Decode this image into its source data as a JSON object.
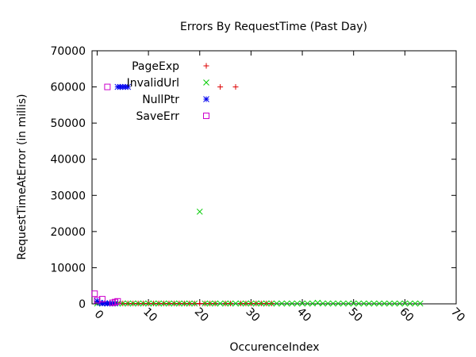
{
  "chart_data": {
    "type": "scatter",
    "title": "Errors By RequestTime (Past Day)",
    "xlabel": "OccurenceIndex",
    "ylabel": "RequestTimeAtError (in millis)",
    "xlim": [
      -1,
      70
    ],
    "ylim": [
      0,
      70000
    ],
    "x_ticks": [
      "0",
      "10",
      "20",
      "30",
      "40",
      "50",
      "60",
      "70"
    ],
    "y_ticks": [
      "0",
      "10000",
      "20000",
      "30000",
      "40000",
      "50000",
      "60000",
      "70000"
    ],
    "grid": false,
    "legend_position": "top-left",
    "series": [
      {
        "name": "PageExp",
        "marker": "plus",
        "color": "#dd0000",
        "points": [
          [
            0,
            500
          ],
          [
            1,
            200
          ],
          [
            2,
            150
          ],
          [
            3,
            100
          ],
          [
            4,
            300
          ],
          [
            5,
            100
          ],
          [
            6,
            100
          ],
          [
            7,
            100
          ],
          [
            8,
            100
          ],
          [
            9,
            100
          ],
          [
            10,
            100
          ],
          [
            11,
            100
          ],
          [
            12,
            100
          ],
          [
            13,
            100
          ],
          [
            14,
            100
          ],
          [
            15,
            100
          ],
          [
            16,
            100
          ],
          [
            17,
            100
          ],
          [
            18,
            100
          ],
          [
            19,
            100
          ],
          [
            20,
            100
          ],
          [
            21,
            100
          ],
          [
            22,
            100
          ],
          [
            23,
            100
          ],
          [
            24,
            60000
          ],
          [
            25,
            100
          ],
          [
            26,
            100
          ],
          [
            27,
            60000
          ],
          [
            28,
            100
          ],
          [
            29,
            100
          ],
          [
            30,
            100
          ],
          [
            31,
            100
          ],
          [
            32,
            100
          ],
          [
            33,
            100
          ],
          [
            34,
            100
          ]
        ]
      },
      {
        "name": "InvalidUrl",
        "marker": "x",
        "color": "#00cc00",
        "points": [
          [
            0,
            100
          ],
          [
            1,
            100
          ],
          [
            2,
            100
          ],
          [
            3,
            100
          ],
          [
            4,
            100
          ],
          [
            5,
            100
          ],
          [
            6,
            100
          ],
          [
            7,
            100
          ],
          [
            8,
            100
          ],
          [
            9,
            100
          ],
          [
            10,
            100
          ],
          [
            11,
            100
          ],
          [
            12,
            100
          ],
          [
            13,
            100
          ],
          [
            14,
            100
          ],
          [
            15,
            100
          ],
          [
            16,
            100
          ],
          [
            17,
            100
          ],
          [
            18,
            100
          ],
          [
            19,
            100
          ],
          [
            20,
            25500
          ],
          [
            21,
            100
          ],
          [
            22,
            100
          ],
          [
            23,
            100
          ],
          [
            24,
            100
          ],
          [
            25,
            100
          ],
          [
            26,
            100
          ],
          [
            27,
            100
          ],
          [
            28,
            100
          ],
          [
            29,
            100
          ],
          [
            30,
            100
          ],
          [
            31,
            100
          ],
          [
            32,
            100
          ],
          [
            33,
            100
          ],
          [
            34,
            100
          ],
          [
            35,
            100
          ],
          [
            36,
            100
          ],
          [
            37,
            100
          ],
          [
            38,
            100
          ],
          [
            39,
            100
          ],
          [
            40,
            100
          ],
          [
            41,
            100
          ],
          [
            42,
            100
          ],
          [
            43,
            300
          ],
          [
            44,
            100
          ],
          [
            45,
            100
          ],
          [
            46,
            100
          ],
          [
            47,
            100
          ],
          [
            48,
            100
          ],
          [
            49,
            100
          ],
          [
            50,
            100
          ],
          [
            51,
            100
          ],
          [
            52,
            100
          ],
          [
            53,
            100
          ],
          [
            54,
            100
          ],
          [
            55,
            100
          ],
          [
            56,
            100
          ],
          [
            57,
            100
          ],
          [
            58,
            100
          ],
          [
            59,
            100
          ],
          [
            60,
            100
          ],
          [
            61,
            100
          ],
          [
            62,
            100
          ],
          [
            63,
            100
          ]
        ]
      },
      {
        "name": "NullPtr",
        "marker": "star",
        "color": "#0000ee",
        "points": [
          [
            0,
            800
          ],
          [
            0.5,
            300
          ],
          [
            1,
            100
          ],
          [
            1.5,
            200
          ],
          [
            2,
            100
          ],
          [
            2.5,
            100
          ],
          [
            3,
            100
          ],
          [
            3.5,
            100
          ],
          [
            4,
            60000
          ],
          [
            4.5,
            60000
          ],
          [
            5,
            60000
          ],
          [
            5.5,
            60000
          ],
          [
            6,
            60000
          ]
        ]
      },
      {
        "name": "SaveErr",
        "marker": "square",
        "color": "#cc00cc",
        "points": [
          [
            -0.5,
            2800
          ],
          [
            0,
            1000
          ],
          [
            1,
            1300
          ],
          [
            2,
            60000
          ],
          [
            3,
            300
          ],
          [
            3.5,
            500
          ],
          [
            4,
            700
          ]
        ]
      }
    ]
  }
}
